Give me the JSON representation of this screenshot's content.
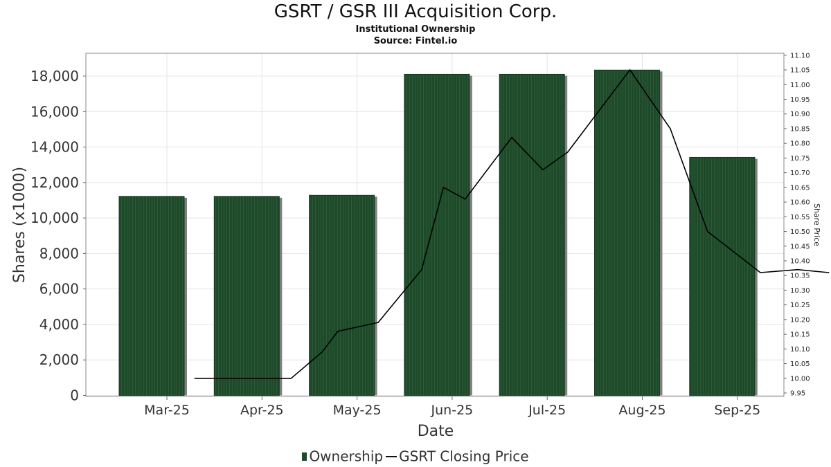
{
  "chart_data": {
    "type": "bar",
    "title": "GSRT / GSR III Acquisition Corp.",
    "subtitles": [
      "Institutional Ownership",
      "Source: Fintel.io"
    ],
    "xlabel": "Date",
    "ylabel": "Shares (x1000)",
    "y2label": "Share Price",
    "categories": [
      "Mar-25",
      "Apr-25",
      "May-25",
      "Jun-25",
      "Jul-25",
      "Aug-25",
      "Sep-25"
    ],
    "ylim": [
      0,
      19000
    ],
    "y_ticks": [
      0,
      2000,
      4000,
      6000,
      8000,
      10000,
      12000,
      14000,
      16000,
      18000
    ],
    "y_tick_labels": [
      "0",
      "2,000",
      "4,000",
      "6,000",
      "8,000",
      "10,000",
      "12,000",
      "14,000",
      "16,000",
      "18,000"
    ],
    "y2lim": [
      9.95,
      11.1
    ],
    "y2_ticks": [
      "9.95",
      "10.00",
      "10.05",
      "10.10",
      "10.15",
      "10.20",
      "10.25",
      "10.30",
      "10.35",
      "10.40",
      "10.45",
      "10.50",
      "10.55",
      "10.60",
      "10.65",
      "10.70",
      "10.75",
      "10.80",
      "10.85",
      "10.90",
      "10.95",
      "11.00",
      "11.05",
      "11.10"
    ],
    "grid": true,
    "legend_position": "bottom",
    "series": [
      {
        "name": "Ownership",
        "type": "bar",
        "color": "#1e4a2a",
        "values": [
          11220,
          11220,
          11280,
          18100,
          18100,
          18340,
          13420
        ]
      },
      {
        "name": "GSRT Closing Price",
        "type": "line",
        "axis": "right",
        "color": "#000000",
        "points": [
          {
            "x": "2025-03-10",
            "y": 10.0
          },
          {
            "x": "2025-04-10",
            "y": 10.0
          },
          {
            "x": "2025-04-20",
            "y": 10.09
          },
          {
            "x": "2025-04-25",
            "y": 10.16
          },
          {
            "x": "2025-05-08",
            "y": 10.19
          },
          {
            "x": "2025-05-22",
            "y": 10.37
          },
          {
            "x": "2025-05-29",
            "y": 10.65
          },
          {
            "x": "2025-06-05",
            "y": 10.61
          },
          {
            "x": "2025-06-20",
            "y": 10.82
          },
          {
            "x": "2025-06-30",
            "y": 10.71
          },
          {
            "x": "2025-07-08",
            "y": 10.77
          },
          {
            "x": "2025-07-28",
            "y": 11.05
          },
          {
            "x": "2025-08-10",
            "y": 10.85
          },
          {
            "x": "2025-08-22",
            "y": 10.5
          },
          {
            "x": "2025-09-08",
            "y": 10.36
          },
          {
            "x": "2025-09-20",
            "y": 10.37
          },
          {
            "x": "2025-09-30",
            "y": 10.36
          }
        ]
      }
    ]
  }
}
